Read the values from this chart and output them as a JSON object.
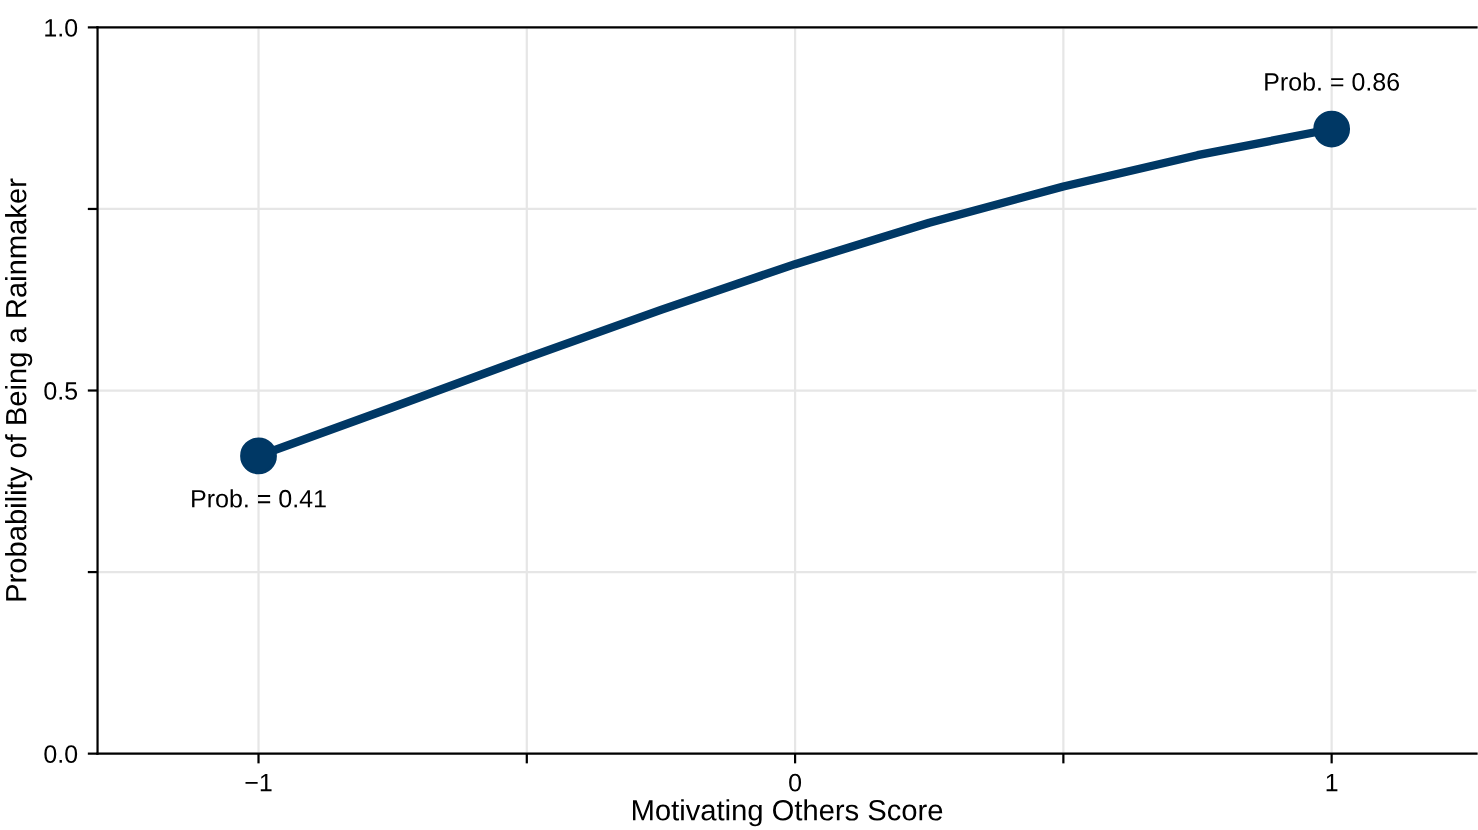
{
  "chart_data": {
    "type": "line",
    "xlabel": "Motivating Others Score",
    "ylabel": "Probability of Being a Rainmaker",
    "xlim": [
      -1.3,
      1.27
    ],
    "ylim": [
      0,
      1
    ],
    "xticks": [
      {
        "value": -1,
        "label": "−1"
      },
      {
        "value": -0.5,
        "label": null
      },
      0,
      {
        "value": 0.5,
        "label": null
      },
      1
    ],
    "yticks": [
      {
        "value": 0,
        "label": "0.0"
      },
      {
        "value": 0.25,
        "label": null
      },
      0.5,
      {
        "value": 0.75,
        "label": null
      },
      {
        "value": 1,
        "label": "1.0"
      }
    ],
    "grid": true,
    "legend": false,
    "series": [
      {
        "color": "#003865",
        "marker": "none",
        "x": [
          -1,
          -0.75,
          -0.5,
          -0.25,
          0,
          0.25,
          0.5,
          0.75,
          1
        ],
        "values": [
          0.41,
          0.477,
          0.545,
          0.611,
          0.674,
          0.731,
          0.781,
          0.824,
          0.86
        ]
      },
      {
        "type": "scatter",
        "color": "#003865",
        "marker": "circle",
        "x": [
          -1,
          1
        ],
        "values": [
          0.41,
          0.86
        ]
      }
    ],
    "annotations": [
      {
        "text": "Prob. = 0.41",
        "x": -1,
        "y": 0.41
      },
      {
        "text": "Prob. = 0.86",
        "x": 1,
        "y": 0.86
      }
    ]
  }
}
